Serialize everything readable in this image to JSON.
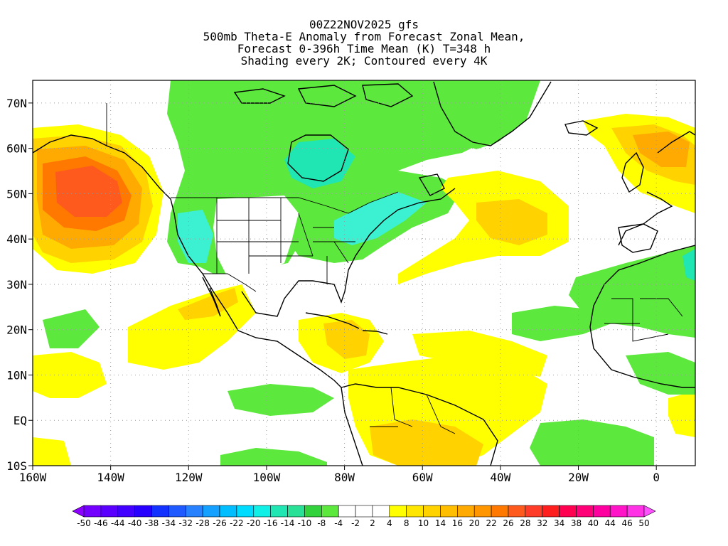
{
  "title": {
    "lines": [
      "00Z22NOV2025 gfs",
      "500mb Theta-E Anomaly from Forecast Zonal Mean,",
      "Forecast 0-396h Time Mean (K) T=348 h",
      "Shading every 2K; Contoured every 4K"
    ]
  },
  "map": {
    "lon_range": [
      -160,
      10
    ],
    "lat_range": [
      -10,
      75
    ],
    "lon_ticks": [
      {
        "value": -160,
        "label": "160W"
      },
      {
        "value": -140,
        "label": "140W"
      },
      {
        "value": -120,
        "label": "120W"
      },
      {
        "value": -100,
        "label": "100W"
      },
      {
        "value": -80,
        "label": "80W"
      },
      {
        "value": -60,
        "label": "60W"
      },
      {
        "value": -40,
        "label": "40W"
      },
      {
        "value": -20,
        "label": "20W"
      },
      {
        "value": 0,
        "label": "0"
      }
    ],
    "lat_ticks": [
      {
        "value": 70,
        "label": "70N"
      },
      {
        "value": 60,
        "label": "60N"
      },
      {
        "value": 50,
        "label": "50N"
      },
      {
        "value": 40,
        "label": "40N"
      },
      {
        "value": 30,
        "label": "30N"
      },
      {
        "value": 20,
        "label": "20N"
      },
      {
        "value": 10,
        "label": "10N"
      },
      {
        "value": 0,
        "label": "EQ"
      },
      {
        "value": -10,
        "label": "10S"
      }
    ],
    "colors": {
      "green": "#5ce83c",
      "bright_green": "#32d23c",
      "teal": "#20e6b4",
      "cyan": "#3cf0d2",
      "yellow": "#ffff00",
      "gold": "#ffd200",
      "orange": "#ffaa00",
      "dark_orange": "#ff7800",
      "red_orange": "#ff5a1e"
    }
  },
  "colorbar": {
    "labels": [
      "-50",
      "-46",
      "-44",
      "-40",
      "-38",
      "-34",
      "-32",
      "-28",
      "-26",
      "-22",
      "-20",
      "-16",
      "-14",
      "-10",
      "-8",
      "-4",
      "-2",
      "2",
      "4",
      "8",
      "10",
      "14",
      "16",
      "20",
      "22",
      "26",
      "28",
      "32",
      "34",
      "38",
      "40",
      "44",
      "46",
      "50"
    ],
    "colors": [
      "#8c00ff",
      "#7300ff",
      "#5a00ff",
      "#4100ff",
      "#2800ff",
      "#1432ff",
      "#1e5aff",
      "#2882ff",
      "#14a0ff",
      "#00beff",
      "#00dcff",
      "#10f0e6",
      "#20e6b4",
      "#28e196",
      "#32d23c",
      "#5ce83c",
      "#ffffff",
      "#ffffff",
      "#ffffff",
      "#ffff00",
      "#ffe600",
      "#ffd200",
      "#ffbe00",
      "#ffaa00",
      "#ff9600",
      "#ff7800",
      "#ff5a1e",
      "#ff3c28",
      "#ff1e1e",
      "#ff0050",
      "#ff0078",
      "#ff00a0",
      "#ff14c8",
      "#ff32e6",
      "#ff50ff"
    ]
  }
}
